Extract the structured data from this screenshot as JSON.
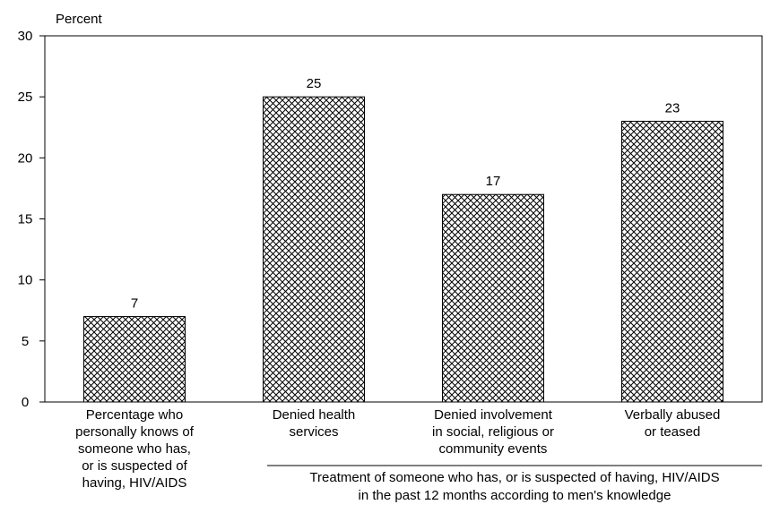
{
  "chart_data": {
    "type": "bar",
    "ylabel": "Percent",
    "ylim": [
      0,
      30
    ],
    "yticks": [
      0,
      5,
      10,
      15,
      20,
      25,
      30
    ],
    "categories": [
      [
        "Percentage who",
        "personally knows of",
        "someone who has,",
        "or is suspected of",
        "having, HIV/AIDS"
      ],
      [
        "Denied health",
        "services"
      ],
      [
        "Denied  involvement",
        "in social, religious or",
        "community events"
      ],
      [
        "Verbally abused",
        "or teased"
      ]
    ],
    "values": [
      7,
      25,
      17,
      23
    ],
    "data_labels": [
      "7",
      "25",
      "17",
      "23"
    ],
    "group_label": [
      "Treatment of someone who has, or is suspected of having, HIV/AIDS",
      "in the past 12 months according to men's knowledge"
    ],
    "bar_fill": "crosshatch",
    "bar_color": "#000000",
    "background": "#ffffff",
    "grid": false
  }
}
